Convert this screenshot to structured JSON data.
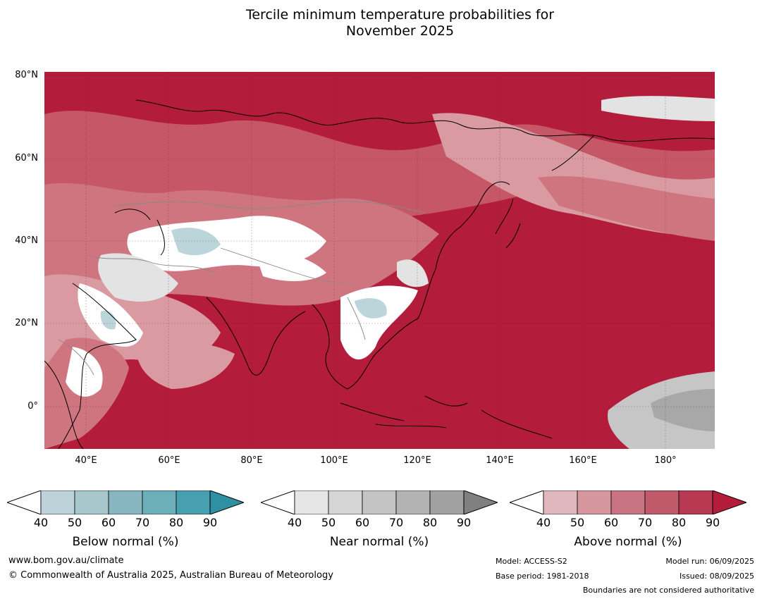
{
  "title_line1": "Tercile minimum temperature probabilities for",
  "title_line2": "November 2025",
  "map": {
    "lat_labels": [
      "80°N",
      "60°N",
      "40°N",
      "20°N",
      "0°"
    ],
    "lon_labels": [
      "40°E",
      "60°E",
      "80°E",
      "100°E",
      "120°E",
      "140°E",
      "160°E",
      "180°"
    ],
    "extent": {
      "lon": [
        30,
        192
      ],
      "lat": [
        -10,
        80
      ]
    },
    "colors": {
      "above_90": "#b31c3a",
      "above_80": "#bc3650",
      "above_70": "#c65767",
      "above_60": "#cf7580",
      "above_50": "#d99aa1",
      "above_40": "#e5bcc1",
      "below_40": "#bcd5db",
      "near_40": "#e3e3e3",
      "near_60": "#c6c6c6",
      "near_70": "#a8a8a8"
    }
  },
  "legends": [
    {
      "name": "Below normal (%)",
      "ticks": [
        "40",
        "50",
        "60",
        "70",
        "80",
        "90"
      ],
      "colors": [
        "#bed3d9",
        "#a8c7cd",
        "#87b5c0",
        "#6caeba",
        "#47a0b0",
        "#2f8fa3"
      ]
    },
    {
      "name": "Near normal (%)",
      "ticks": [
        "40",
        "50",
        "60",
        "70",
        "80",
        "90"
      ],
      "colors": [
        "#e6e6e6",
        "#d5d5d5",
        "#c4c4c4",
        "#b3b3b3",
        "#a1a1a1",
        "#808080"
      ]
    },
    {
      "name": "Above normal (%)",
      "ticks": [
        "40",
        "50",
        "60",
        "70",
        "80",
        "90"
      ],
      "colors": [
        "#e0b7bd",
        "#d6969e",
        "#c97482",
        "#c05a6a",
        "#b83a52",
        "#b31c3a"
      ]
    }
  ],
  "footer": {
    "website": "www.bom.gov.au/climate",
    "copyright": "© Commonwealth of Australia 2025, Australian Bureau of Meteorology",
    "model": "Model: ACCESS-S2",
    "base_period": "Base period: 1981-2018",
    "model_run": "Model run: 06/09/2025",
    "issued": "Issued: 08/09/2025",
    "disclaimer": "Boundaries are not considered authoritative"
  }
}
